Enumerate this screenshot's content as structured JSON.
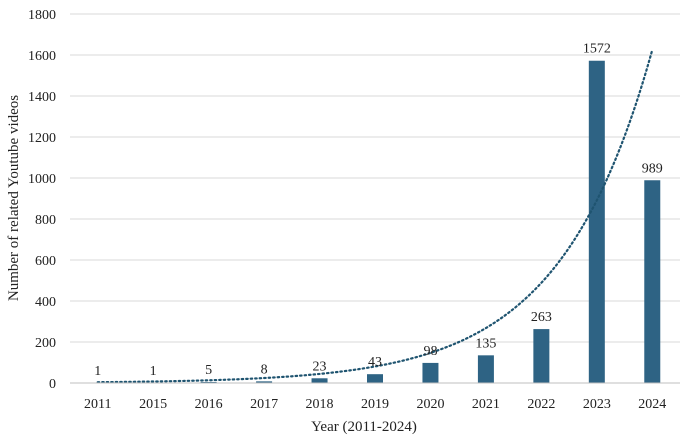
{
  "chart_data": {
    "type": "bar",
    "title": "",
    "xlabel": "Year (2011-2024)",
    "ylabel": "Number of related Youtube videos",
    "categories": [
      "2011",
      "2015",
      "2016",
      "2017",
      "2018",
      "2019",
      "2020",
      "2021",
      "2022",
      "2023",
      "2024"
    ],
    "values": [
      1,
      1,
      5,
      8,
      23,
      43,
      98,
      135,
      263,
      1572,
      989
    ],
    "data_labels": [
      "1",
      "1",
      "5",
      "8",
      "23",
      "43",
      "98",
      "135",
      "263",
      "1572",
      "989"
    ],
    "ylim": [
      0,
      1800
    ],
    "yticks": [
      0,
      200,
      400,
      600,
      800,
      1000,
      1200,
      1400,
      1600,
      1800
    ],
    "grid": true,
    "legend": "none",
    "trendline": {
      "type": "exponential",
      "style": "dotted",
      "start_value": 4,
      "end_value": 1625
    },
    "colors": {
      "bar": "#2e6384",
      "trendline": "#1f5470",
      "grid": "#d9d9d9"
    }
  }
}
